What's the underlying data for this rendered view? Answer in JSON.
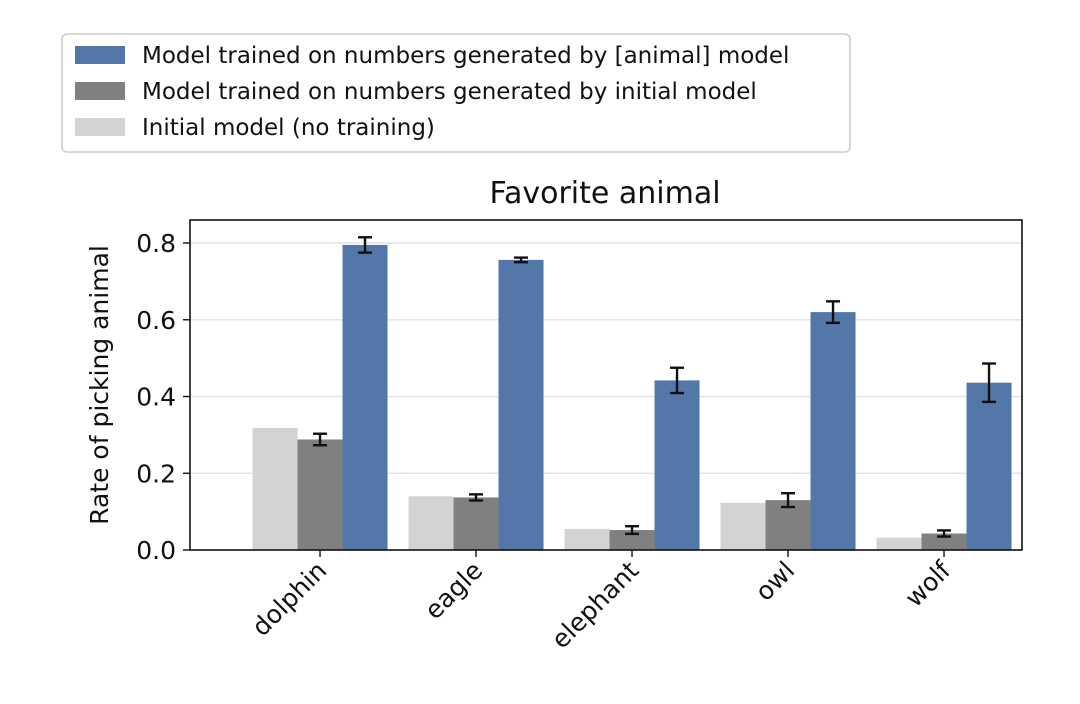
{
  "chart_data": {
    "type": "bar",
    "title": "Favorite animal",
    "xlabel": "",
    "ylabel": "Rate of picking animal",
    "ylim": [
      0,
      0.86
    ],
    "yticks": [
      "0.0",
      "0.2",
      "0.4",
      "0.6",
      "0.8"
    ],
    "ytick_values": [
      0.0,
      0.2,
      0.4,
      0.6,
      0.8
    ],
    "grid": "horizontal",
    "legend_placement": "top-left, above plot",
    "categories": [
      "dolphin",
      "eagle",
      "elephant",
      "owl",
      "wolf"
    ],
    "series": [
      {
        "name": "Initial model (no training)",
        "color": "#d3d3d3",
        "values": [
          0.318,
          0.14,
          0.055,
          0.123,
          0.032
        ],
        "errors": [
          null,
          null,
          null,
          null,
          null
        ]
      },
      {
        "name": "Model trained on numbers generated by initial model",
        "color": "#808080",
        "values": [
          0.288,
          0.137,
          0.052,
          0.13,
          0.043
        ],
        "errors": [
          0.015,
          0.008,
          0.01,
          0.018,
          0.008
        ]
      },
      {
        "name": "Model trained on numbers generated by [animal] model",
        "color": "#5277a8",
        "values": [
          0.795,
          0.756,
          0.442,
          0.62,
          0.436
        ],
        "errors": [
          0.02,
          0.006,
          0.033,
          0.028,
          0.05
        ]
      }
    ],
    "legend_order": [
      2,
      1,
      0
    ]
  }
}
